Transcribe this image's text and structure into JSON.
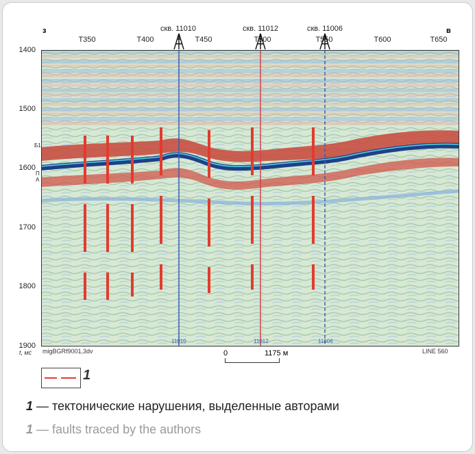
{
  "compass": {
    "west": "з",
    "east": "в"
  },
  "x_ticks": [
    "T350",
    "T400",
    "T450",
    "T500",
    "T550",
    "T600",
    "T650"
  ],
  "wells": [
    {
      "label": "скв. 11010",
      "bottom_label": "11010"
    },
    {
      "label": "скв. 11012",
      "bottom_label": "11012"
    },
    {
      "label": "скв. 11006",
      "bottom_label": "11006"
    }
  ],
  "y_axis": {
    "ticks": [
      "1400",
      "1500",
      "1600",
      "1700",
      "1800",
      "1900"
    ],
    "unit": "t, мс"
  },
  "horizons": [
    "Б1",
    "П",
    "А"
  ],
  "footer": {
    "dataset": "migBGRf9001,3dv",
    "line": "LINE 560"
  },
  "scale_bar": {
    "start": "0",
    "end": "1175 м"
  },
  "legend": {
    "number": "1"
  },
  "captions": {
    "ru_num": "1",
    "ru_text": " — тектонические нарушения, выделенные авторами",
    "en_num": "1",
    "en_text": " — faults traced by the authors"
  },
  "colors": {
    "fault": "#e23b2e",
    "peak": "#c0392b",
    "trough": "#1f4f9c",
    "background": "#cfe3cf"
  }
}
